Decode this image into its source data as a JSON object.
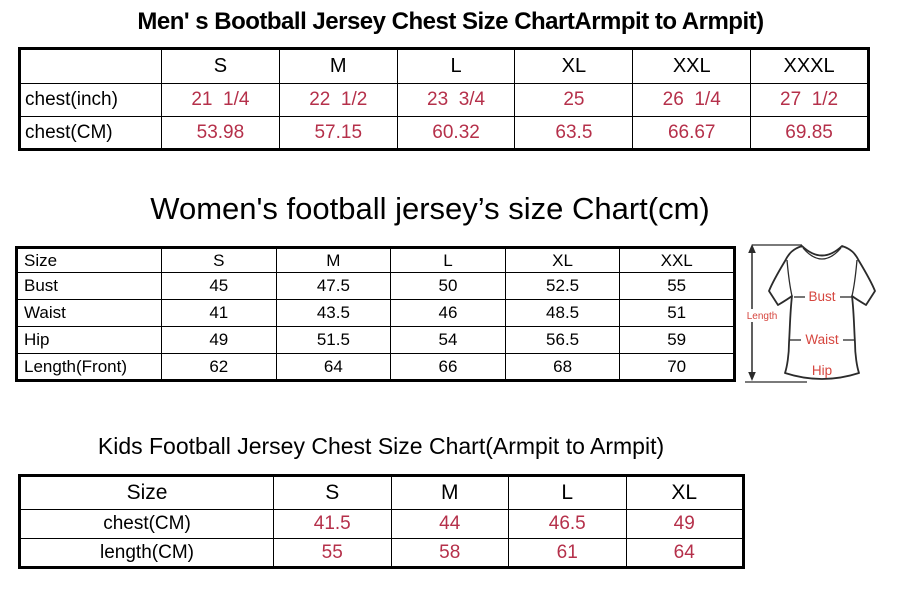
{
  "colors": {
    "background": "#ffffff",
    "table_border": "#000000",
    "header_text": "#000000",
    "value_text": "#b5304a",
    "diagram_label": "#d6463f",
    "diagram_outline": "#2b2b2b"
  },
  "chart_data": [
    {
      "type": "table",
      "title": "Men' s Bootball Jersey Chest Size ChartArmpit to Armpit)",
      "columns": [
        "",
        "S",
        "M",
        "L",
        "XL",
        "XXL",
        "XXXL"
      ],
      "rows": [
        {
          "label": "chest(inch)",
          "values": [
            "21  1/4",
            "22  1/2",
            "23  3/4",
            "25",
            "26  1/4",
            "27  1/2"
          ]
        },
        {
          "label": "chest(CM)",
          "values": [
            "53.98",
            "57.15",
            "60.32",
            "63.5",
            "66.67",
            "69.85"
          ]
        }
      ],
      "value_color": "#b5304a"
    },
    {
      "type": "table",
      "title": "Women's football jersey’s size Chart(cm)",
      "columns": [
        "Size",
        "S",
        "M",
        "L",
        "XL",
        "XXL"
      ],
      "rows": [
        {
          "label": "Bust",
          "values": [
            "45",
            "47.5",
            "50",
            "52.5",
            "55"
          ]
        },
        {
          "label": "Waist",
          "values": [
            "41",
            "43.5",
            "46",
            "48.5",
            "51"
          ]
        },
        {
          "label": "Hip",
          "values": [
            "49",
            "51.5",
            "54",
            "56.5",
            "59"
          ]
        },
        {
          "label": "Length(Front)",
          "values": [
            "62",
            "64",
            "66",
            "68",
            "70"
          ]
        }
      ],
      "value_color": "#000000"
    },
    {
      "type": "table",
      "title": "Kids Football Jersey Chest Size Chart(Armpit to Armpit)",
      "columns": [
        "Size",
        "S",
        "M",
        "L",
        "XL"
      ],
      "rows": [
        {
          "label": "chest(CM)",
          "values": [
            "41.5",
            "44",
            "46.5",
            "49"
          ]
        },
        {
          "label": "length(CM)",
          "values": [
            "55",
            "58",
            "61",
            "64"
          ]
        }
      ],
      "value_color": "#b5304a"
    }
  ],
  "diagram": {
    "length_label": "Length",
    "bust_label": "Bust",
    "waist_label": "Waist",
    "hip_label": "Hip"
  }
}
